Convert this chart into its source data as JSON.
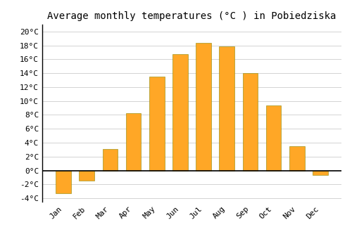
{
  "title": "Average monthly temperatures (°C ) in Pobiedziska",
  "months": [
    "Jan",
    "Feb",
    "Mar",
    "Apr",
    "May",
    "Jun",
    "Jul",
    "Aug",
    "Sep",
    "Oct",
    "Nov",
    "Dec"
  ],
  "values": [
    -3.3,
    -1.5,
    3.1,
    8.3,
    13.5,
    16.7,
    18.4,
    17.9,
    14.0,
    9.4,
    3.5,
    -0.7
  ],
  "bar_color": "#FFA726",
  "bar_edge_color": "#888800",
  "ylim": [
    -4.5,
    21
  ],
  "yticks": [
    -4,
    -2,
    0,
    2,
    4,
    6,
    8,
    10,
    12,
    14,
    16,
    18,
    20
  ],
  "ytick_labels": [
    "-4°C",
    "-2°C",
    "0°C",
    "2°C",
    "4°C",
    "6°C",
    "8°C",
    "10°C",
    "12°C",
    "14°C",
    "16°C",
    "18°C",
    "20°C"
  ],
  "background_color": "#ffffff",
  "grid_color": "#cccccc",
  "title_fontsize": 10,
  "tick_fontsize": 8,
  "zero_line_color": "#000000",
  "bar_width": 0.65
}
